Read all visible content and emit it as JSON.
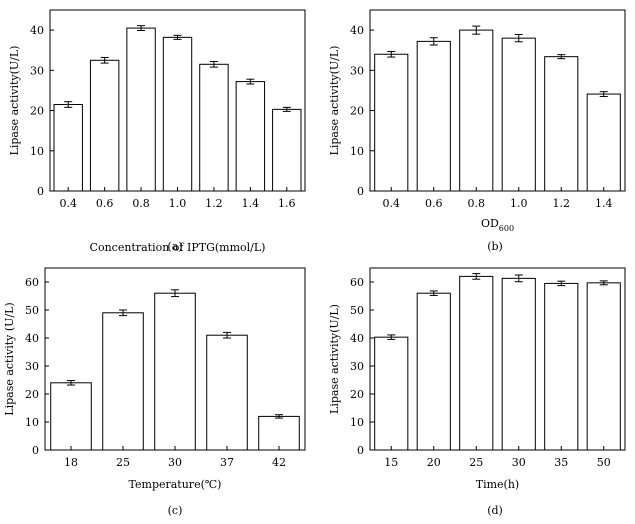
{
  "chart_data": [
    {
      "type": "bar",
      "panel_label": "(a)",
      "xlabel": "Concentration of IPTG(mmol/L)",
      "ylabel": "Lipase activity(U/L)",
      "categories": [
        "0.4",
        "0.6",
        "0.8",
        "1.0",
        "1.2",
        "1.4",
        "1.6"
      ],
      "values": [
        21.5,
        32.5,
        40.5,
        38.2,
        31.5,
        27.2,
        20.3
      ],
      "errors": [
        0.7,
        0.7,
        0.6,
        0.5,
        0.7,
        0.6,
        0.5
      ],
      "ylim": [
        0,
        45
      ],
      "yticks": [
        0,
        10,
        20,
        30,
        40
      ]
    },
    {
      "type": "bar",
      "panel_label": "(b)",
      "xlabel": "OD",
      "xlabel_sub": "600",
      "ylabel": "Lipase activity(U/L)",
      "categories": [
        "0.4",
        "0.6",
        "0.8",
        "1.0",
        "1.2",
        "1.4"
      ],
      "values": [
        34.0,
        37.2,
        40.0,
        38.0,
        33.4,
        24.1
      ],
      "errors": [
        0.7,
        0.9,
        1.0,
        0.9,
        0.5,
        0.6
      ],
      "ylim": [
        0,
        45
      ],
      "yticks": [
        0,
        10,
        20,
        30,
        40
      ]
    },
    {
      "type": "bar",
      "panel_label": "(c)",
      "xlabel": "Temperature(℃)",
      "ylabel": "Lipase activity (U/L)",
      "categories": [
        "18",
        "25",
        "30",
        "37",
        "42"
      ],
      "values": [
        24.0,
        49.0,
        56.0,
        41.0,
        12.0
      ],
      "errors": [
        0.8,
        1.0,
        1.2,
        1.0,
        0.6
      ],
      "ylim": [
        0,
        65
      ],
      "yticks": [
        0,
        10,
        20,
        30,
        40,
        50,
        60
      ]
    },
    {
      "type": "bar",
      "panel_label": "(d)",
      "xlabel": "Time(h)",
      "ylabel": "Lipase activity(U/L)",
      "categories": [
        "15",
        "20",
        "25",
        "30",
        "35",
        "50"
      ],
      "values": [
        40.3,
        56.0,
        62.0,
        61.3,
        59.5,
        59.7
      ],
      "errors": [
        0.8,
        0.8,
        1.0,
        1.2,
        0.8,
        0.7
      ],
      "ylim": [
        0,
        65
      ],
      "yticks": [
        0,
        10,
        20,
        30,
        40,
        50,
        60
      ]
    }
  ]
}
